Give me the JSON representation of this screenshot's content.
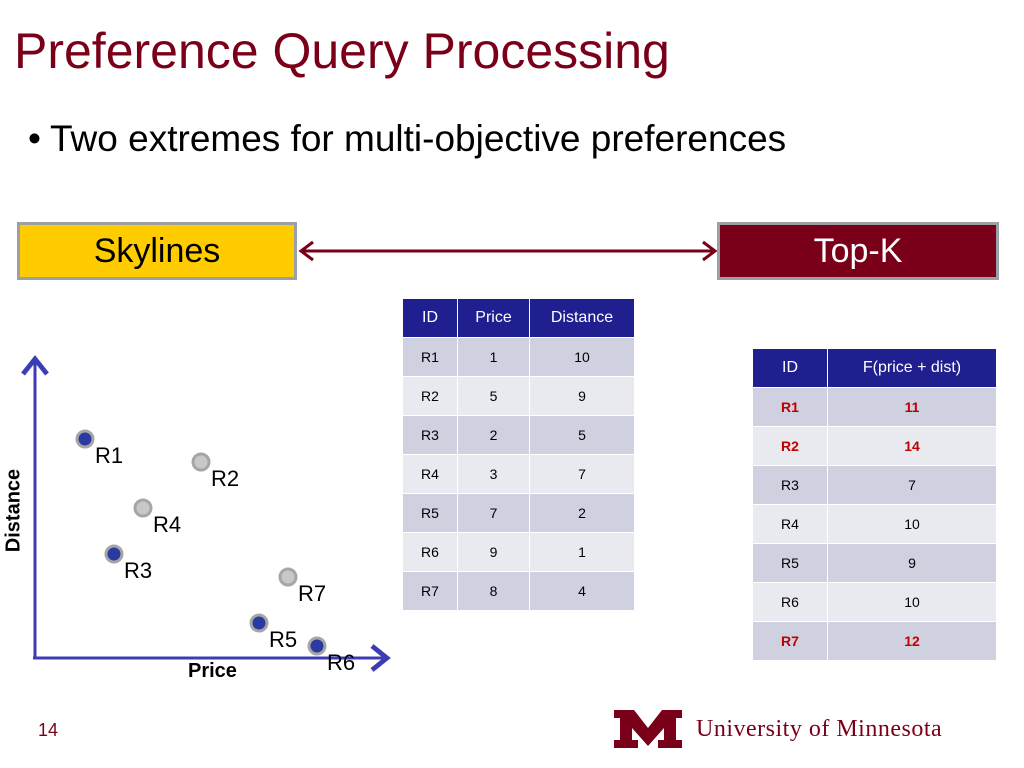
{
  "slide": {
    "title": "Preference Query Processing",
    "bullet": "Two extremes for multi-objective preferences",
    "left_box": "Skylines",
    "right_box": "Top-K",
    "page_number": "14",
    "university": "University of Minnesota"
  },
  "colors": {
    "maroon": "#7a0019",
    "gold": "#ffcc00",
    "table_header": "#1f1f8f",
    "highlight_red": "#c00000",
    "point_blue": "#2b3aa0",
    "point_gray": "#a6a6a6",
    "axis_blue": "#3c3cb4"
  },
  "table1": {
    "headers": [
      "ID",
      "Price",
      "Distance"
    ],
    "rows": [
      [
        "R1",
        "1",
        "10"
      ],
      [
        "R2",
        "5",
        "9"
      ],
      [
        "R3",
        "2",
        "5"
      ],
      [
        "R4",
        "3",
        "7"
      ],
      [
        "R5",
        "7",
        "2"
      ],
      [
        "R6",
        "9",
        "1"
      ],
      [
        "R7",
        "8",
        "4"
      ]
    ]
  },
  "table2": {
    "headers": [
      "ID",
      "F(price + dist)"
    ],
    "rows": [
      [
        "R1",
        "11"
      ],
      [
        "R2",
        "14"
      ],
      [
        "R3",
        "7"
      ],
      [
        "R4",
        "10"
      ],
      [
        "R5",
        "9"
      ],
      [
        "R6",
        "10"
      ],
      [
        "R7",
        "12"
      ]
    ],
    "highlighted_rows": [
      "R1",
      "R2",
      "R7"
    ]
  },
  "plot": {
    "xlabel": "Price",
    "ylabel": "Distance",
    "points": [
      {
        "label": "R1",
        "price": 1,
        "distance": 10,
        "skyline": true
      },
      {
        "label": "R2",
        "price": 5,
        "distance": 9,
        "skyline": false
      },
      {
        "label": "R3",
        "price": 2,
        "distance": 5,
        "skyline": true
      },
      {
        "label": "R4",
        "price": 3,
        "distance": 7,
        "skyline": false
      },
      {
        "label": "R5",
        "price": 7,
        "distance": 2,
        "skyline": true
      },
      {
        "label": "R6",
        "price": 9,
        "distance": 1,
        "skyline": true
      },
      {
        "label": "R7",
        "price": 8,
        "distance": 4,
        "skyline": false
      }
    ]
  }
}
